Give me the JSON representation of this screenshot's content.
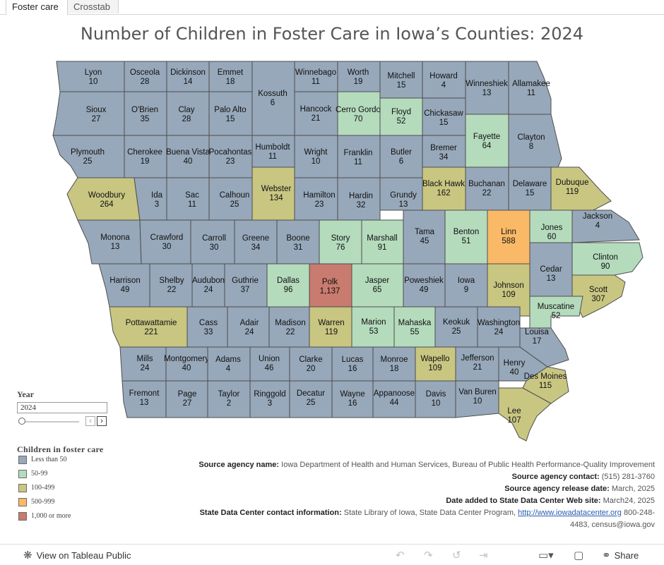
{
  "tabs": [
    {
      "label": "Foster care",
      "active": true
    },
    {
      "label": "Crosstab",
      "active": false
    }
  ],
  "title": "Number of Children in Foster Care in Iowa’s Counties: 2024",
  "colors": {
    "lt50": "#97a8ba",
    "50_99": "#b5dbbd",
    "100_499": "#c9c682",
    "500_999": "#fab967",
    "1000plus": "#c87b6e"
  },
  "chart_data": {
    "type": "choropleth-map",
    "year": 2024,
    "counties": [
      {
        "name": "Lyon",
        "value": "10"
      },
      {
        "name": "Osceola",
        "value": "28"
      },
      {
        "name": "Dickinson",
        "value": "14"
      },
      {
        "name": "Emmet",
        "value": "18"
      },
      {
        "name": "Kossuth",
        "value": "6"
      },
      {
        "name": "Winnebago",
        "value": "11"
      },
      {
        "name": "Worth",
        "value": "19"
      },
      {
        "name": "Mitchell",
        "value": "15"
      },
      {
        "name": "Howard",
        "value": "4"
      },
      {
        "name": "Winneshiek",
        "value": "13"
      },
      {
        "name": "Allamakee",
        "value": "11"
      },
      {
        "name": "Sioux",
        "value": "27"
      },
      {
        "name": "O'Brien",
        "value": "35"
      },
      {
        "name": "Clay",
        "value": "28"
      },
      {
        "name": "Palo Alto",
        "value": "15"
      },
      {
        "name": "Hancock",
        "value": "21"
      },
      {
        "name": "Cerro Gordo",
        "value": "70"
      },
      {
        "name": "Floyd",
        "value": "52"
      },
      {
        "name": "Chickasaw",
        "value": "15"
      },
      {
        "name": "Fayette",
        "value": "64"
      },
      {
        "name": "Clayton",
        "value": "8"
      },
      {
        "name": "Plymouth",
        "value": "25"
      },
      {
        "name": "Cherokee",
        "value": "19"
      },
      {
        "name": "Buena Vista",
        "value": "40"
      },
      {
        "name": "Pocahontas",
        "value": "23"
      },
      {
        "name": "Humboldt",
        "value": "11"
      },
      {
        "name": "Wright",
        "value": "10"
      },
      {
        "name": "Franklin",
        "value": "11"
      },
      {
        "name": "Butler",
        "value": "6"
      },
      {
        "name": "Bremer",
        "value": "34"
      },
      {
        "name": "Black Hawk",
        "value": "162"
      },
      {
        "name": "Buchanan",
        "value": "22"
      },
      {
        "name": "Delaware",
        "value": "15"
      },
      {
        "name": "Dubuque",
        "value": "119"
      },
      {
        "name": "Woodbury",
        "value": "264"
      },
      {
        "name": "Ida",
        "value": "3"
      },
      {
        "name": "Sac",
        "value": "11"
      },
      {
        "name": "Calhoun",
        "value": "25"
      },
      {
        "name": "Webster",
        "value": "134"
      },
      {
        "name": "Hamilton",
        "value": "23"
      },
      {
        "name": "Hardin",
        "value": "32"
      },
      {
        "name": "Grundy",
        "value": "13"
      },
      {
        "name": "Tama",
        "value": "45"
      },
      {
        "name": "Benton",
        "value": "51"
      },
      {
        "name": "Linn",
        "value": "588"
      },
      {
        "name": "Jones",
        "value": "60"
      },
      {
        "name": "Jackson",
        "value": "4"
      },
      {
        "name": "Monona",
        "value": "13"
      },
      {
        "name": "Crawford",
        "value": "30"
      },
      {
        "name": "Carroll",
        "value": "30"
      },
      {
        "name": "Greene",
        "value": "34"
      },
      {
        "name": "Boone",
        "value": "31"
      },
      {
        "name": "Story",
        "value": "76"
      },
      {
        "name": "Marshall",
        "value": "91"
      },
      {
        "name": "Clinton",
        "value": "90"
      },
      {
        "name": "Cedar",
        "value": "13"
      },
      {
        "name": "Harrison",
        "value": "49"
      },
      {
        "name": "Shelby",
        "value": "22"
      },
      {
        "name": "Audubon",
        "value": "24"
      },
      {
        "name": "Guthrie",
        "value": "37"
      },
      {
        "name": "Dallas",
        "value": "96"
      },
      {
        "name": "Polk",
        "value": "1,137"
      },
      {
        "name": "Jasper",
        "value": "65"
      },
      {
        "name": "Poweshiek",
        "value": "49"
      },
      {
        "name": "Iowa",
        "value": "9"
      },
      {
        "name": "Johnson",
        "value": "109"
      },
      {
        "name": "Scott",
        "value": "307"
      },
      {
        "name": "Muscatine",
        "value": "52"
      },
      {
        "name": "Pottawattamie",
        "value": "221"
      },
      {
        "name": "Cass",
        "value": "33"
      },
      {
        "name": "Adair",
        "value": "24"
      },
      {
        "name": "Madison",
        "value": "22"
      },
      {
        "name": "Warren",
        "value": "119"
      },
      {
        "name": "Marion",
        "value": "53"
      },
      {
        "name": "Mahaska",
        "value": "55"
      },
      {
        "name": "Keokuk",
        "value": "25"
      },
      {
        "name": "Washington",
        "value": "24"
      },
      {
        "name": "Louisa",
        "value": "17"
      },
      {
        "name": "Mills",
        "value": "24"
      },
      {
        "name": "Montgomery",
        "value": "40"
      },
      {
        "name": "Adams",
        "value": "4"
      },
      {
        "name": "Union",
        "value": "46"
      },
      {
        "name": "Clarke",
        "value": "20"
      },
      {
        "name": "Lucas",
        "value": "16"
      },
      {
        "name": "Monroe",
        "value": "18"
      },
      {
        "name": "Wapello",
        "value": "109"
      },
      {
        "name": "Jefferson",
        "value": "21"
      },
      {
        "name": "Henry",
        "value": "40"
      },
      {
        "name": "Des Moines",
        "value": "115"
      },
      {
        "name": "Fremont",
        "value": "13"
      },
      {
        "name": "Page",
        "value": "27"
      },
      {
        "name": "Taylor",
        "value": "2"
      },
      {
        "name": "Ringgold",
        "value": "3"
      },
      {
        "name": "Decatur",
        "value": "25"
      },
      {
        "name": "Wayne",
        "value": "16"
      },
      {
        "name": "Appanoose",
        "value": "44"
      },
      {
        "name": "Davis",
        "value": "10"
      },
      {
        "name": "Van Buren",
        "value": "10"
      },
      {
        "name": "Lee",
        "value": "107"
      }
    ]
  },
  "filter": {
    "label": "Year",
    "value": "2024"
  },
  "legend": {
    "title": "Children in foster care",
    "items": [
      {
        "label": "Less than 50",
        "color": "#97a8ba"
      },
      {
        "label": "50-99",
        "color": "#b5dbbd"
      },
      {
        "label": "100-499",
        "color": "#c9c682"
      },
      {
        "label": "500-999",
        "color": "#fab967"
      },
      {
        "label": "1,000 or more",
        "color": "#c87b6e"
      }
    ]
  },
  "source": {
    "agency_name_label": "Source agency name:",
    "agency_name": "Iowa Department of Health and Human Services, Bureau of Public Health Performance-Quality Improvement",
    "contact_label": "Source agency contact:",
    "contact": "(515) 281-3760",
    "release_label": "Source agency release date:",
    "release": "March, 2025",
    "added_label": "Date added to State Data Center Web site:",
    "added": "March24, 2025",
    "sdc_label": "State Data Center contact information:",
    "sdc_text": "State Library of Iowa, State Data Center Program,",
    "sdc_link": "http://www.iowadatacenter.org",
    "sdc_phone": "800-248-",
    "sdc_phone2": "4483, census@iowa.gov"
  },
  "footer": {
    "view_label": "View on Tableau Public",
    "share_label": "Share"
  }
}
